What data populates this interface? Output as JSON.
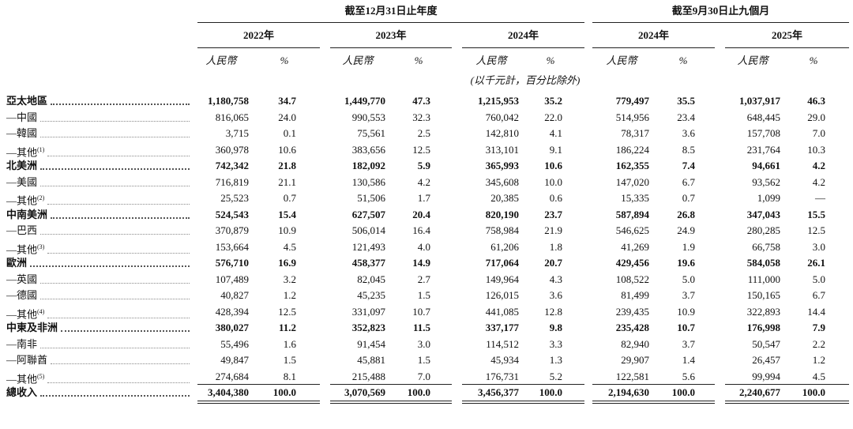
{
  "header": {
    "groups": [
      "截至12月31日止年度",
      "截至9月30日止九個月"
    ],
    "years": [
      "2022年",
      "2023年",
      "2024年",
      "2024年",
      "2025年"
    ],
    "currency": "人民幣",
    "percent": "%",
    "unit_note": "(以千元計，百分比除外)"
  },
  "table": {
    "rows": [
      {
        "label": "亞太地區",
        "bold": true,
        "values": [
          "1,180,758",
          "34.7",
          "1,449,770",
          "47.3",
          "1,215,953",
          "35.2",
          "779,497",
          "35.5",
          "1,037,917",
          "46.3"
        ]
      },
      {
        "label": "—中國",
        "bold": false,
        "values": [
          "816,065",
          "24.0",
          "990,553",
          "32.3",
          "760,042",
          "22.0",
          "514,956",
          "23.4",
          "648,445",
          "29.0"
        ]
      },
      {
        "label": "—韓國",
        "bold": false,
        "values": [
          "3,715",
          "0.1",
          "75,561",
          "2.5",
          "142,810",
          "4.1",
          "78,317",
          "3.6",
          "157,708",
          "7.0"
        ]
      },
      {
        "label": "—其他",
        "note": "(1)",
        "bold": false,
        "values": [
          "360,978",
          "10.6",
          "383,656",
          "12.5",
          "313,101",
          "9.1",
          "186,224",
          "8.5",
          "231,764",
          "10.3"
        ]
      },
      {
        "label": "北美洲",
        "bold": true,
        "values": [
          "742,342",
          "21.8",
          "182,092",
          "5.9",
          "365,993",
          "10.6",
          "162,355",
          "7.4",
          "94,661",
          "4.2"
        ]
      },
      {
        "label": "—美國",
        "bold": false,
        "values": [
          "716,819",
          "21.1",
          "130,586",
          "4.2",
          "345,608",
          "10.0",
          "147,020",
          "6.7",
          "93,562",
          "4.2"
        ]
      },
      {
        "label": "—其他",
        "note": "(2)",
        "bold": false,
        "values": [
          "25,523",
          "0.7",
          "51,506",
          "1.7",
          "20,385",
          "0.6",
          "15,335",
          "0.7",
          "1,099",
          "—"
        ]
      },
      {
        "label": "中南美洲",
        "bold": true,
        "values": [
          "524,543",
          "15.4",
          "627,507",
          "20.4",
          "820,190",
          "23.7",
          "587,894",
          "26.8",
          "347,043",
          "15.5"
        ]
      },
      {
        "label": "—巴西",
        "bold": false,
        "values": [
          "370,879",
          "10.9",
          "506,014",
          "16.4",
          "758,984",
          "21.9",
          "546,625",
          "24.9",
          "280,285",
          "12.5"
        ]
      },
      {
        "label": "—其他",
        "note": "(3)",
        "bold": false,
        "values": [
          "153,664",
          "4.5",
          "121,493",
          "4.0",
          "61,206",
          "1.8",
          "41,269",
          "1.9",
          "66,758",
          "3.0"
        ]
      },
      {
        "label": "歐洲",
        "bold": true,
        "values": [
          "576,710",
          "16.9",
          "458,377",
          "14.9",
          "717,064",
          "20.7",
          "429,456",
          "19.6",
          "584,058",
          "26.1"
        ]
      },
      {
        "label": "—英國",
        "bold": false,
        "values": [
          "107,489",
          "3.2",
          "82,045",
          "2.7",
          "149,964",
          "4.3",
          "108,522",
          "5.0",
          "111,000",
          "5.0"
        ]
      },
      {
        "label": "—德國",
        "bold": false,
        "values": [
          "40,827",
          "1.2",
          "45,235",
          "1.5",
          "126,015",
          "3.6",
          "81,499",
          "3.7",
          "150,165",
          "6.7"
        ]
      },
      {
        "label": "—其他",
        "note": "(4)",
        "bold": false,
        "values": [
          "428,394",
          "12.5",
          "331,097",
          "10.7",
          "441,085",
          "12.8",
          "239,435",
          "10.9",
          "322,893",
          "14.4"
        ]
      },
      {
        "label": "中東及非洲",
        "bold": true,
        "values": [
          "380,027",
          "11.2",
          "352,823",
          "11.5",
          "337,177",
          "9.8",
          "235,428",
          "10.7",
          "176,998",
          "7.9"
        ]
      },
      {
        "label": "—南非",
        "bold": false,
        "values": [
          "55,496",
          "1.6",
          "91,454",
          "3.0",
          "114,512",
          "3.3",
          "82,940",
          "3.7",
          "50,547",
          "2.2"
        ]
      },
      {
        "label": "—阿聯酋",
        "bold": false,
        "values": [
          "49,847",
          "1.5",
          "45,881",
          "1.5",
          "45,934",
          "1.3",
          "29,907",
          "1.4",
          "26,457",
          "1.2"
        ]
      },
      {
        "label": "—其他",
        "note": "(5)",
        "bold": false,
        "values": [
          "274,684",
          "8.1",
          "215,488",
          "7.0",
          "176,731",
          "5.2",
          "122,581",
          "5.6",
          "99,994",
          "4.5"
        ]
      },
      {
        "label": "總收入",
        "bold": true,
        "total": true,
        "values": [
          "3,404,380",
          "100.0",
          "3,070,569",
          "100.0",
          "3,456,377",
          "100.0",
          "2,194,630",
          "100.0",
          "2,240,677",
          "100.0"
        ]
      }
    ]
  }
}
